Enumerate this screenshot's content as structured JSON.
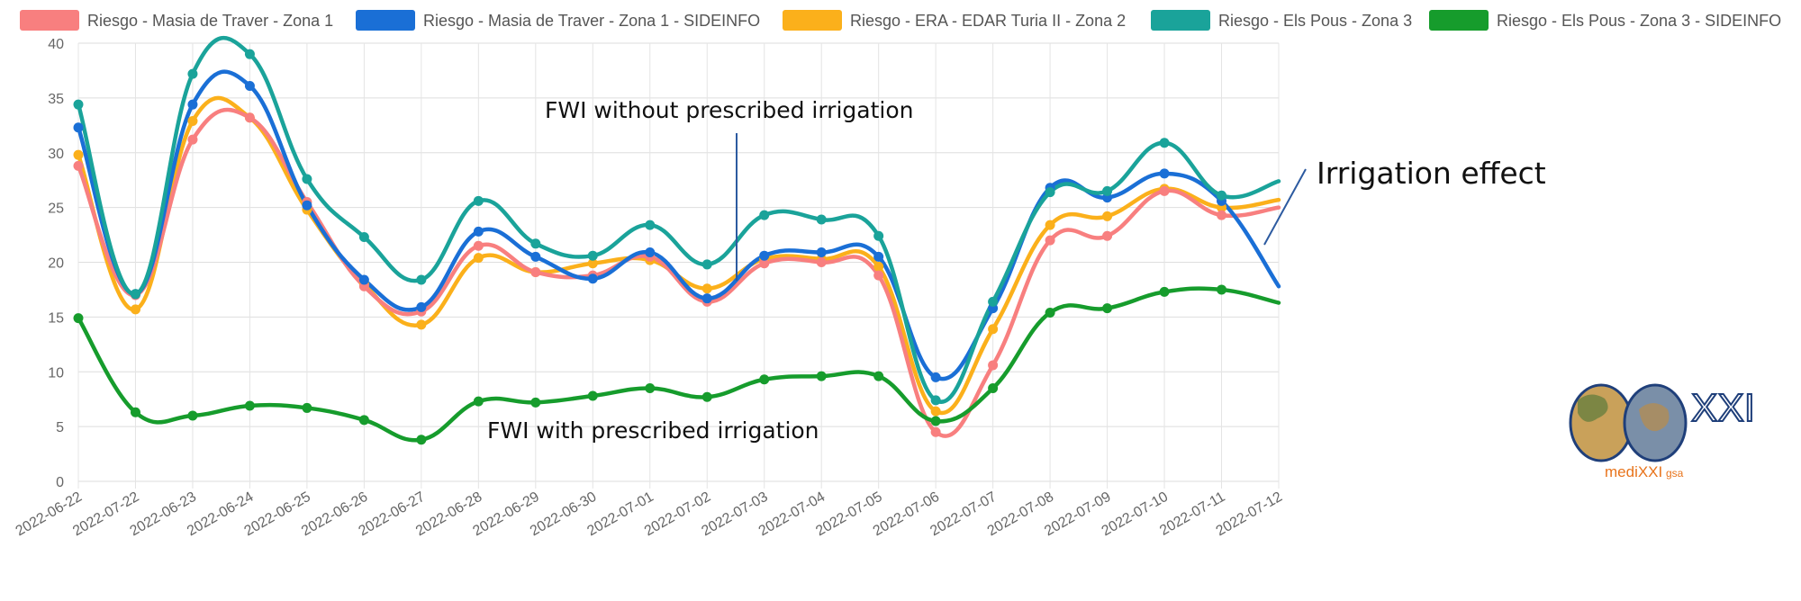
{
  "chart_data": {
    "type": "line",
    "title": "",
    "xlabel": "",
    "ylabel": "",
    "ylim": [
      0,
      40
    ],
    "yticks": [
      0,
      5,
      10,
      15,
      20,
      25,
      30,
      35,
      40
    ],
    "grid": true,
    "legend_position": "top",
    "categories": [
      "2022-06-22",
      "2022-07-22",
      "2022-06-23",
      "2022-06-24",
      "2022-06-25",
      "2022-06-26",
      "2022-06-27",
      "2022-06-28",
      "2022-06-29",
      "2022-06-30",
      "2022-07-01",
      "2022-07-02",
      "2022-07-03",
      "2022-07-04",
      "2022-07-05",
      "2022-07-06",
      "2022-07-07",
      "2022-07-08",
      "2022-07-09",
      "2022-07-10",
      "2022-07-11",
      "2022-07-12"
    ],
    "series": [
      {
        "name": "Riesgo - Masia de Traver - Zona 1",
        "color": "#f87f7f",
        "values": [
          28.8,
          17.0,
          31.2,
          33.2,
          25.5,
          17.8,
          15.5,
          21.5,
          19.1,
          18.8,
          20.5,
          16.4,
          19.9,
          20.0,
          18.8,
          4.5,
          10.6,
          22.0,
          22.4,
          26.5,
          24.3,
          25.0
        ]
      },
      {
        "name": "Riesgo - Masia de Traver - Zona 1 - SIDEINFO",
        "color": "#1a6fd6",
        "values": [
          32.3,
          17.1,
          34.4,
          36.1,
          25.2,
          18.4,
          15.9,
          22.8,
          20.5,
          18.5,
          20.9,
          16.7,
          20.6,
          20.9,
          20.5,
          9.5,
          15.8,
          26.8,
          25.9,
          28.1,
          25.6,
          17.8
        ]
      },
      {
        "name": "Riesgo - ERA - EDAR Turia II - Zona 2",
        "color": "#fbb01b",
        "values": [
          29.8,
          15.7,
          32.9,
          33.2,
          24.8,
          18.0,
          14.3,
          20.4,
          19.1,
          19.9,
          20.2,
          17.6,
          20.3,
          20.3,
          19.6,
          6.4,
          13.9,
          23.4,
          24.2,
          26.7,
          25.0,
          25.7
        ]
      },
      {
        "name": "Riesgo - Els Pous - Zona 3",
        "color": "#1aa39a",
        "values": [
          34.4,
          17.1,
          37.2,
          39.0,
          27.6,
          22.3,
          18.4,
          25.6,
          21.7,
          20.6,
          23.4,
          19.8,
          24.3,
          23.9,
          22.4,
          7.4,
          16.4,
          26.4,
          26.5,
          30.9,
          26.1,
          27.4
        ]
      },
      {
        "name": "Riesgo - Els Pous - Zona 3 - SIDEINFO",
        "color": "#169c2c",
        "values": [
          14.9,
          6.3,
          6.0,
          6.9,
          6.7,
          5.6,
          3.8,
          7.3,
          7.2,
          7.8,
          8.5,
          7.7,
          9.3,
          9.6,
          9.6,
          5.5,
          8.5,
          15.4,
          15.8,
          17.3,
          17.5,
          16.3
        ]
      }
    ],
    "annotations": {
      "without": "FWI without prescribed irrigation",
      "with": "FWI with prescribed irrigation",
      "effect": "Irrigation effect"
    }
  },
  "logo": {
    "text_main": "mediXXI",
    "text_sub": "gsa",
    "text_mark": "XXI"
  }
}
